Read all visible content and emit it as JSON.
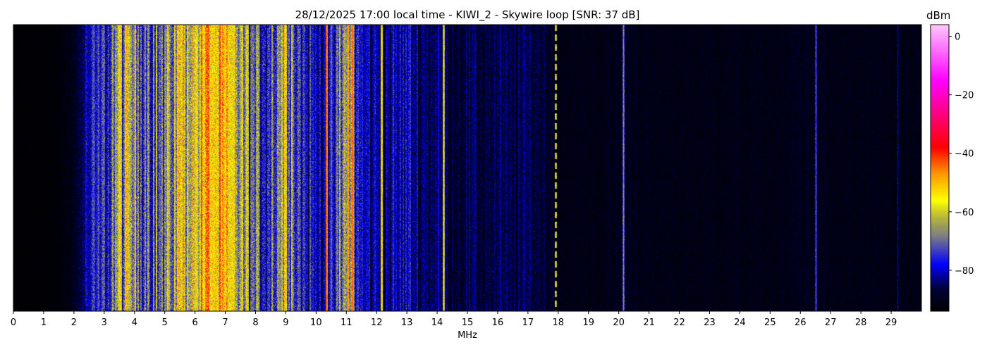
{
  "chart_data": {
    "type": "heatmap",
    "title": "28/12/2025 17:00 local time - KIWI_2 - Skywire loop [SNR: 37 dB]",
    "xlabel": "MHz",
    "ylabel": "",
    "xlim": [
      0,
      30
    ],
    "x_ticks": [
      0,
      1,
      2,
      3,
      4,
      5,
      6,
      7,
      8,
      9,
      10,
      11,
      12,
      13,
      14,
      15,
      16,
      17,
      18,
      19,
      20,
      21,
      22,
      23,
      24,
      25,
      26,
      27,
      28,
      29
    ],
    "colorbar": {
      "label": "dBm",
      "range": [
        -94,
        4
      ],
      "ticks": [
        0,
        -20,
        -40,
        -60,
        -80
      ],
      "tick_labels": [
        "0",
        "−20",
        "−40",
        "−60",
        "−80"
      ],
      "colormap": [
        {
          "dbm": -94,
          "color": "#000000"
        },
        {
          "dbm": -86,
          "color": "#00003a"
        },
        {
          "dbm": -78,
          "color": "#0000ff"
        },
        {
          "dbm": -68,
          "color": "#808080"
        },
        {
          "dbm": -62,
          "color": "#b4b43c"
        },
        {
          "dbm": -56,
          "color": "#ffff00"
        },
        {
          "dbm": -47,
          "color": "#ff9900"
        },
        {
          "dbm": -38,
          "color": "#ff0000"
        },
        {
          "dbm": -25,
          "color": "#ff0090"
        },
        {
          "dbm": -15,
          "color": "#ff00ff"
        },
        {
          "dbm": 4,
          "color": "#ffc8ff"
        }
      ]
    },
    "spectrum_profile": {
      "freq_step_mhz": 0.5,
      "start_mhz": 0,
      "mean_dbm": [
        -94,
        -94,
        -94,
        -93,
        -90,
        -80,
        -76,
        -64,
        -66,
        -68,
        -72,
        -56,
        -58,
        -50,
        -58,
        -64,
        -74,
        -72,
        -58,
        -76,
        -80,
        -80,
        -66,
        -80,
        -82,
        -82,
        -80,
        -84,
        -84,
        -87,
        -86,
        -87,
        -86,
        -87,
        -86,
        -87,
        -91,
        -91,
        -91,
        -91,
        -90,
        -90,
        -91,
        -91,
        -91,
        -91,
        -91,
        -91,
        -91,
        -91,
        -91,
        -91,
        -90,
        -90,
        -91,
        -91,
        -91,
        -91,
        -91,
        -91
      ]
    },
    "carriers": [
      {
        "mhz": 10.35,
        "dbm": -40
      },
      {
        "mhz": 11.05,
        "dbm": -42
      },
      {
        "mhz": 11.2,
        "dbm": -40
      },
      {
        "mhz": 12.15,
        "dbm": -50
      },
      {
        "mhz": 14.2,
        "dbm": -55
      },
      {
        "mhz": 17.9,
        "dbm": -55
      },
      {
        "mhz": 20.15,
        "dbm": -65
      },
      {
        "mhz": 26.5,
        "dbm": -70
      },
      {
        "mhz": 29.2,
        "dbm": -80
      }
    ]
  }
}
